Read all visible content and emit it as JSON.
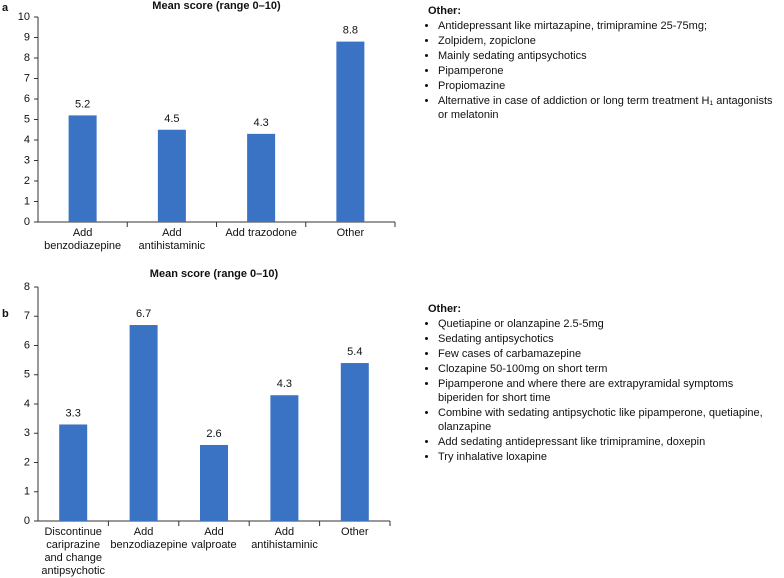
{
  "chart_data": [
    {
      "type": "bar",
      "panel_label": "a",
      "title": "Mean score (range 0–10)",
      "categories": [
        "Add benzodiazepine",
        "Add antihistaminic",
        "Add trazodone",
        "Other"
      ],
      "values": [
        5.2,
        4.5,
        4.3,
        8.8
      ],
      "color": "#3a72c4",
      "ylim": [
        0,
        10
      ],
      "yticks": [
        0,
        1,
        2,
        3,
        4,
        5,
        6,
        7,
        8,
        9,
        10
      ]
    },
    {
      "type": "bar",
      "panel_label": "b",
      "title": "Mean score (range 0–10)",
      "categories": [
        "Discontinue cariprazine and change antipsychotic",
        "Add benzodiazepine",
        "Add valproate",
        "Add antihistaminic",
        "Other"
      ],
      "values": [
        3.3,
        6.7,
        2.6,
        4.3,
        5.4
      ],
      "color": "#3a72c4",
      "ylim": [
        0,
        8
      ],
      "yticks": [
        0,
        1,
        2,
        3,
        4,
        5,
        6,
        7,
        8
      ]
    }
  ],
  "notes": [
    {
      "heading": "Other:",
      "items": [
        "Antidepressant like mirtazapine, trimipramine 25-75mg;",
        "Zolpidem, zopiclone",
        "Mainly sedating antipsychotics",
        "Pipamperone",
        "Propiomazine",
        "Alternative in case of addiction or long term treatment H₁ antagonists or melatonin"
      ]
    },
    {
      "heading": "Other:",
      "items": [
        "Quetiapine or olanzapine 2.5-5mg",
        "Sedating antipsychotics",
        "Few cases of carbamazepine",
        "Clozapine 50-100mg on short term",
        "Pipamperone and where there are extrapyramidal symptoms biperiden for short time",
        "Combine with sedating antipsychotic like pipamperone, quetiapine, olanzapine",
        "Add sedating antidepressant like trimipramine, doxepin",
        "Try inhalative loxapine"
      ]
    }
  ]
}
